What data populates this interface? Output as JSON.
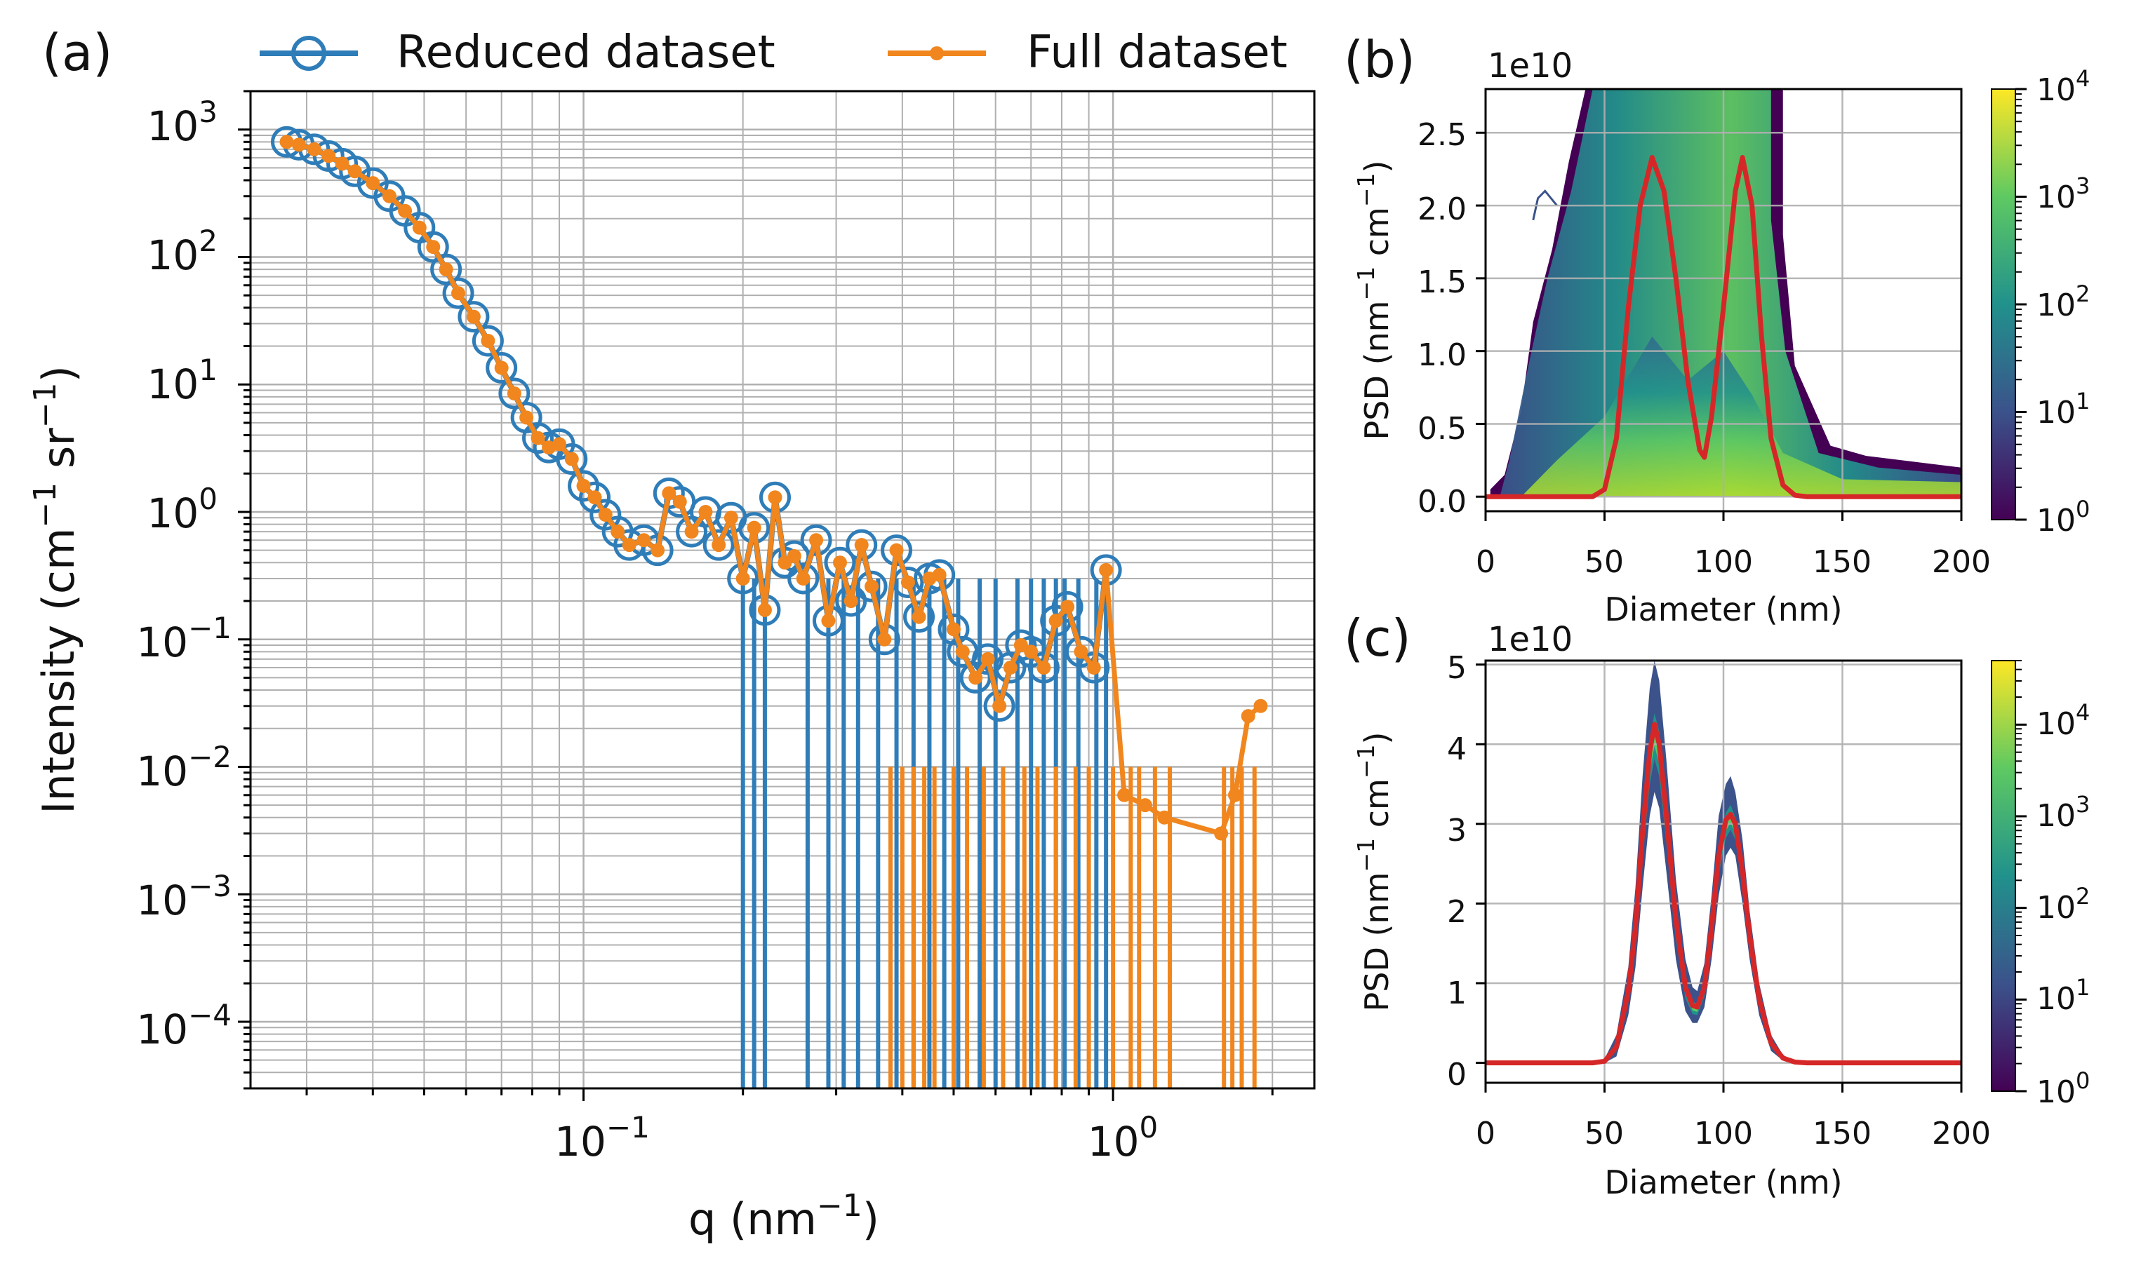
{
  "colors": {
    "blue": "#2f7db8",
    "orange": "#f0861d",
    "red": "#d62728",
    "grid": "#b0b0b0",
    "axis": "#000000",
    "viridis": [
      "#440154",
      "#3b528b",
      "#21918c",
      "#5ec962",
      "#fde725"
    ]
  },
  "chart_data": [
    {
      "id": "a",
      "panel_label": "(a)",
      "type": "line",
      "xlabel": "q (nm",
      "xlabel_sup": "−1",
      "xlabel_tail": ")",
      "ylabel": "Intensity (cm",
      "ylabel_sup1": "−1",
      "ylabel_mid": " sr",
      "ylabel_sup2": "−1",
      "ylabel_tail": ")",
      "xscale": "log",
      "yscale": "log",
      "xlim": [
        0.0235,
        2.4
      ],
      "ylim": [
        3e-05,
        2000
      ],
      "xtick_labels": [
        {
          "base": "10",
          "exp": "−1",
          "value": 0.1
        },
        {
          "base": "10",
          "exp": "0",
          "value": 1
        }
      ],
      "ytick_labels": [
        {
          "base": "10",
          "exp": "3",
          "value": 1000
        },
        {
          "base": "10",
          "exp": "2",
          "value": 100
        },
        {
          "base": "10",
          "exp": "1",
          "value": 10
        },
        {
          "base": "10",
          "exp": "0",
          "value": 1
        },
        {
          "base": "10",
          "exp": "−1",
          "value": 0.1
        },
        {
          "base": "10",
          "exp": "−2",
          "value": 0.01
        },
        {
          "base": "10",
          "exp": "−3",
          "value": 0.001
        },
        {
          "base": "10",
          "exp": "−4",
          "value": 0.0001
        }
      ],
      "grid": true,
      "legend": {
        "placement": "top",
        "entries": [
          "Reduced dataset",
          "Full dataset"
        ]
      },
      "series": [
        {
          "name": "Reduced dataset",
          "marker": "open-circle",
          "x": [
            0.0275,
            0.029,
            0.031,
            0.033,
            0.035,
            0.037,
            0.04,
            0.043,
            0.046,
            0.049,
            0.052,
            0.055,
            0.058,
            0.062,
            0.066,
            0.07,
            0.074,
            0.078,
            0.082,
            0.086,
            0.09,
            0.095,
            0.1,
            0.105,
            0.11,
            0.116,
            0.122,
            0.13,
            0.138,
            0.145,
            0.152,
            0.16,
            0.17,
            0.18,
            0.19,
            0.2,
            0.21,
            0.22,
            0.23,
            0.24,
            0.25,
            0.26,
            0.275,
            0.29,
            0.305,
            0.32,
            0.335,
            0.35,
            0.37,
            0.39,
            0.41,
            0.43,
            0.45,
            0.47,
            0.5,
            0.52,
            0.55,
            0.58,
            0.61,
            0.64,
            0.67,
            0.7,
            0.74,
            0.78,
            0.82,
            0.87,
            0.92,
            0.97
          ],
          "y": [
            800,
            760,
            700,
            620,
            540,
            470,
            380,
            300,
            230,
            170,
            120,
            80,
            52,
            34,
            22,
            13.5,
            8.5,
            5.5,
            3.8,
            3.2,
            3.4,
            2.6,
            1.6,
            1.3,
            0.95,
            0.7,
            0.55,
            0.6,
            0.5,
            1.4,
            1.2,
            0.7,
            1.0,
            0.55,
            0.9,
            0.3,
            0.75,
            0.17,
            1.3,
            0.4,
            0.45,
            0.3,
            0.6,
            0.14,
            0.4,
            0.2,
            0.55,
            0.26,
            0.1,
            0.5,
            0.28,
            0.15,
            0.3,
            0.32,
            0.12,
            0.08,
            0.05,
            0.07,
            0.03,
            0.06,
            0.09,
            0.08,
            0.06,
            0.14,
            0.18,
            0.08,
            0.06,
            0.35
          ],
          "drops": [
            0.2,
            0.21,
            0.22,
            0.265,
            0.29,
            0.31,
            0.33,
            0.36,
            0.39,
            0.42,
            0.45,
            0.48,
            0.51,
            0.56,
            0.6,
            0.66,
            0.7,
            0.74,
            0.78,
            0.81,
            0.86,
            0.93,
            0.97
          ]
        },
        {
          "name": "Full dataset",
          "marker": "dot",
          "x": [
            0.0275,
            0.029,
            0.031,
            0.033,
            0.035,
            0.037,
            0.04,
            0.043,
            0.046,
            0.049,
            0.052,
            0.055,
            0.058,
            0.062,
            0.066,
            0.07,
            0.074,
            0.078,
            0.082,
            0.086,
            0.09,
            0.095,
            0.1,
            0.105,
            0.11,
            0.116,
            0.122,
            0.13,
            0.138,
            0.145,
            0.152,
            0.16,
            0.17,
            0.18,
            0.19,
            0.2,
            0.21,
            0.22,
            0.23,
            0.24,
            0.25,
            0.26,
            0.275,
            0.29,
            0.305,
            0.32,
            0.335,
            0.35,
            0.37,
            0.39,
            0.41,
            0.43,
            0.45,
            0.47,
            0.5,
            0.52,
            0.55,
            0.58,
            0.61,
            0.64,
            0.67,
            0.7,
            0.74,
            0.78,
            0.82,
            0.87,
            0.92,
            0.97,
            1.05,
            1.15,
            1.25,
            1.6,
            1.7,
            1.8,
            1.9
          ],
          "y": [
            800,
            760,
            700,
            620,
            540,
            470,
            380,
            300,
            230,
            170,
            120,
            80,
            52,
            34,
            22,
            13.5,
            8.5,
            5.5,
            3.8,
            3.2,
            3.4,
            2.6,
            1.6,
            1.3,
            0.95,
            0.7,
            0.55,
            0.6,
            0.5,
            1.4,
            1.2,
            0.7,
            1.0,
            0.55,
            0.9,
            0.3,
            0.75,
            0.17,
            1.3,
            0.4,
            0.45,
            0.3,
            0.6,
            0.14,
            0.4,
            0.2,
            0.55,
            0.26,
            0.1,
            0.5,
            0.28,
            0.15,
            0.3,
            0.32,
            0.12,
            0.08,
            0.05,
            0.07,
            0.03,
            0.06,
            0.09,
            0.08,
            0.06,
            0.14,
            0.18,
            0.08,
            0.06,
            0.35,
            0.006,
            0.005,
            0.004,
            0.003,
            0.006,
            0.025,
            0.03
          ],
          "drops": [
            0.38,
            0.4,
            0.42,
            0.44,
            0.46,
            0.5,
            0.53,
            0.57,
            0.62,
            0.68,
            0.72,
            0.78,
            0.85,
            0.9,
            1.0,
            1.08,
            1.12,
            1.2,
            1.28,
            1.62,
            1.68,
            1.75,
            1.85
          ]
        }
      ]
    },
    {
      "id": "b",
      "panel_label": "(b)",
      "type": "heatmap",
      "xlabel": "Diameter (nm)",
      "ylabel": "PSD (nm",
      "ylabel_sup1": "−1",
      "ylabel_mid": " cm",
      "ylabel_sup2": "−1",
      "ylabel_tail": ")",
      "offset_text": "1e10",
      "xlim": [
        0,
        200
      ],
      "ylim": [
        -0.1,
        2.8
      ],
      "xticks": [
        "0",
        "50",
        "100",
        "150",
        "200"
      ],
      "yticks": [
        "0.0",
        "0.5",
        "1.0",
        "1.5",
        "2.0",
        "2.5"
      ],
      "grid": true,
      "colorbar": {
        "scale": "log",
        "range": [
          1,
          10000
        ],
        "ticks": [
          {
            "base": "10",
            "exp": "0"
          },
          {
            "base": "10",
            "exp": "1"
          },
          {
            "base": "10",
            "exp": "2"
          },
          {
            "base": "10",
            "exp": "3"
          },
          {
            "base": "10",
            "exp": "4"
          }
        ]
      },
      "mean_curve": {
        "x": [
          0,
          40,
          45,
          50,
          55,
          60,
          65,
          70,
          75,
          80,
          85,
          90,
          92,
          95,
          100,
          105,
          108,
          112,
          116,
          120,
          125,
          130,
          135,
          140,
          150,
          200
        ],
        "y": [
          0,
          0,
          0,
          0.05,
          0.4,
          1.3,
          2.0,
          2.33,
          2.1,
          1.5,
          0.8,
          0.32,
          0.27,
          0.55,
          1.3,
          2.1,
          2.33,
          2.0,
          1.1,
          0.4,
          0.08,
          0.01,
          0,
          0,
          0,
          0
        ]
      }
    },
    {
      "id": "c",
      "panel_label": "(c)",
      "type": "heatmap",
      "xlabel": "Diameter (nm)",
      "ylabel": "PSD (nm",
      "ylabel_sup1": "−1",
      "ylabel_mid": " cm",
      "ylabel_sup2": "−1",
      "ylabel_tail": ")",
      "offset_text": "1e10",
      "xlim": [
        0,
        200
      ],
      "ylim": [
        -0.25,
        5.05
      ],
      "xticks": [
        "0",
        "50",
        "100",
        "150",
        "200"
      ],
      "yticks": [
        "0",
        "1",
        "2",
        "3",
        "4",
        "5"
      ],
      "grid": true,
      "colorbar": {
        "scale": "log",
        "range": [
          1,
          50000
        ],
        "ticks": [
          {
            "base": "10",
            "exp": "0"
          },
          {
            "base": "10",
            "exp": "1"
          },
          {
            "base": "10",
            "exp": "2"
          },
          {
            "base": "10",
            "exp": "3"
          },
          {
            "base": "10",
            "exp": "4"
          }
        ]
      },
      "mean_curve": {
        "x": [
          0,
          45,
          50,
          55,
          60,
          63,
          66,
          69,
          71,
          73,
          76,
          80,
          84,
          87,
          89,
          92,
          95,
          98,
          101,
          103,
          105,
          108,
          111,
          115,
          120,
          125,
          130,
          135,
          140,
          200
        ],
        "y": [
          0,
          0,
          0.02,
          0.2,
          0.9,
          1.7,
          2.9,
          3.9,
          4.25,
          4.0,
          3.1,
          1.8,
          0.95,
          0.72,
          0.7,
          0.95,
          1.7,
          2.6,
          3.05,
          3.12,
          3.0,
          2.4,
          1.6,
          0.8,
          0.25,
          0.06,
          0.01,
          0,
          0,
          0
        ]
      },
      "band_top": {
        "x": [
          45,
          50,
          55,
          60,
          63,
          66,
          69,
          71,
          73,
          76,
          80,
          84,
          87,
          89,
          92,
          95,
          98,
          101,
          103,
          105,
          108,
          111,
          115,
          120,
          125,
          130,
          135
        ],
        "y": [
          0,
          0.05,
          0.35,
          1.2,
          2.2,
          3.6,
          4.7,
          5.05,
          4.8,
          3.8,
          2.3,
          1.3,
          0.95,
          0.9,
          1.25,
          2.1,
          3.1,
          3.5,
          3.6,
          3.4,
          2.8,
          1.9,
          1.0,
          0.35,
          0.1,
          0.02,
          0
        ]
      },
      "band_bottom": {
        "x": [
          45,
          50,
          55,
          60,
          63,
          66,
          69,
          71,
          73,
          76,
          80,
          84,
          87,
          89,
          92,
          95,
          98,
          101,
          103,
          105,
          108,
          111,
          115,
          120,
          125,
          130,
          135
        ],
        "y": [
          0,
          0,
          0.08,
          0.6,
          1.2,
          2.2,
          3.1,
          3.4,
          3.2,
          2.4,
          1.3,
          0.65,
          0.5,
          0.5,
          0.7,
          1.3,
          2.1,
          2.6,
          2.7,
          2.6,
          2.0,
          1.3,
          0.6,
          0.15,
          0.03,
          0,
          0
        ]
      }
    }
  ]
}
